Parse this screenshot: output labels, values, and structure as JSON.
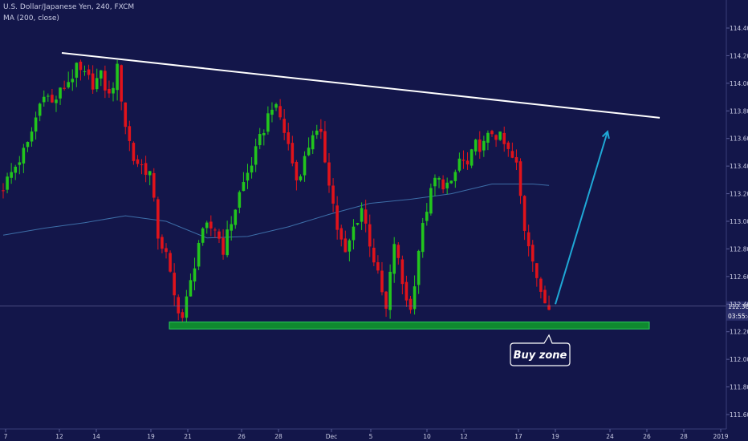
{
  "header": {
    "title": "U.S. Dollar/Japanese Yen, 240, FXCM",
    "indicator": "MA (200, close)"
  },
  "colors": {
    "background": "#13164a",
    "up_candle": "#22c51d",
    "down_candle": "#e0131b",
    "ma_line": "#3d6ea8",
    "trendline": "#ffffff",
    "arrow": "#1fa8d6",
    "buy_zone_fill": "#0f8a2f",
    "buy_zone_border": "#2bd35a",
    "axis_text": "#c9cbe3",
    "price_badge": "#2a2e6b"
  },
  "chart_data": {
    "type": "candlestick",
    "ylim": [
      111.55,
      114.7
    ],
    "y_ticks": [
      "114.400",
      "114.200",
      "114.000",
      "113.800",
      "113.600",
      "113.400",
      "113.200",
      "113.000",
      "112.800",
      "112.600",
      "112.400",
      "112.200",
      "112.000",
      "111.800",
      "111.600"
    ],
    "x_ticks": [
      "7",
      "12",
      "14",
      "19",
      "21",
      "26",
      "28",
      "Dec",
      "5",
      "10",
      "12",
      "17",
      "19",
      "24",
      "26",
      "28",
      "2019"
    ],
    "last_price": "112.385",
    "countdown": "03:55:45",
    "close_path": [
      [
        0,
        113.25
      ],
      [
        3,
        113.55
      ],
      [
        5,
        113.95
      ],
      [
        6,
        113.85
      ],
      [
        9,
        114.1
      ],
      [
        11,
        114.0
      ],
      [
        12,
        114.05
      ],
      [
        13,
        113.9
      ],
      [
        14,
        114.1
      ],
      [
        15,
        113.7
      ],
      [
        16,
        113.45
      ],
      [
        18,
        113.35
      ],
      [
        19,
        112.9
      ],
      [
        20,
        112.75
      ],
      [
        21,
        112.45
      ],
      [
        22,
        112.3
      ],
      [
        23,
        112.55
      ],
      [
        24,
        112.85
      ],
      [
        25,
        112.95
      ],
      [
        26,
        112.95
      ],
      [
        27,
        112.8
      ],
      [
        29,
        113.2
      ],
      [
        31,
        113.5
      ],
      [
        33,
        113.85
      ],
      [
        34,
        113.75
      ],
      [
        35,
        113.55
      ],
      [
        36,
        113.3
      ],
      [
        37,
        113.45
      ],
      [
        38,
        113.65
      ],
      [
        39,
        113.6
      ],
      [
        40,
        113.3
      ],
      [
        41,
        112.95
      ],
      [
        42,
        112.75
      ],
      [
        43,
        112.95
      ],
      [
        44,
        113.1
      ],
      [
        45,
        112.85
      ],
      [
        46,
        112.6
      ],
      [
        47,
        112.35
      ],
      [
        48,
        112.85
      ],
      [
        49,
        112.55
      ],
      [
        50,
        112.35
      ],
      [
        51,
        112.8
      ],
      [
        52,
        113.1
      ],
      [
        53,
        113.3
      ],
      [
        55,
        113.25
      ],
      [
        56,
        113.45
      ],
      [
        57,
        113.4
      ],
      [
        58,
        113.55
      ],
      [
        59,
        113.55
      ],
      [
        60,
        113.65
      ],
      [
        61,
        113.6
      ],
      [
        62,
        113.5
      ],
      [
        63,
        113.4
      ],
      [
        64,
        112.95
      ],
      [
        65,
        112.75
      ],
      [
        66,
        112.45
      ],
      [
        67,
        112.38
      ]
    ],
    "ma200": [
      [
        0,
        112.9
      ],
      [
        5,
        112.95
      ],
      [
        10,
        112.99
      ],
      [
        15,
        113.04
      ],
      [
        20,
        113.0
      ],
      [
        25,
        112.88
      ],
      [
        30,
        112.89
      ],
      [
        35,
        112.96
      ],
      [
        40,
        113.05
      ],
      [
        45,
        113.13
      ],
      [
        50,
        113.16
      ],
      [
        55,
        113.2
      ],
      [
        60,
        113.27
      ],
      [
        65,
        113.27
      ],
      [
        67,
        113.26
      ]
    ],
    "trendline": [
      [
        114.22,
        "12"
      ],
      [
        113.75,
        "27"
      ]
    ],
    "buy_zone": [
      112.22,
      112.27
    ],
    "projection_arrow": [
      112.4,
      113.65
    ],
    "annotation": "Buy zone"
  }
}
